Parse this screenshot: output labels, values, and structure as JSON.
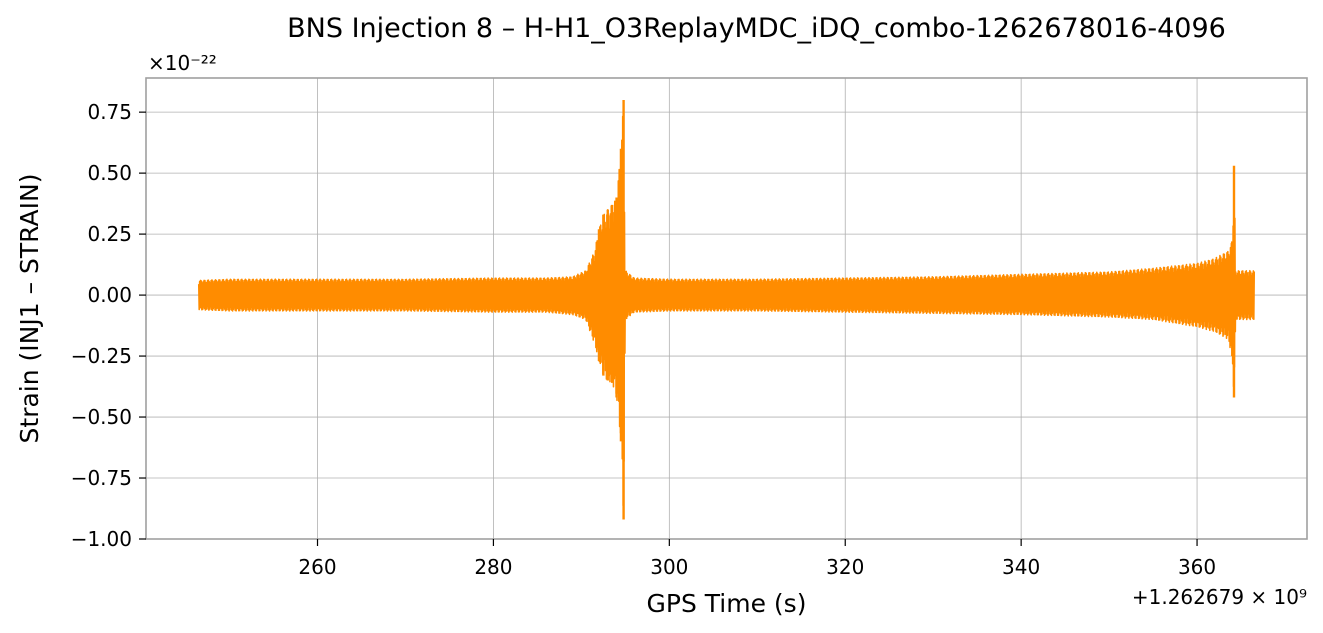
{
  "chart_data": {
    "type": "line",
    "title": "BNS Injection 8 – H-H1_O3ReplayMDC_iDQ_combo-1262678016-4096",
    "xlabel": "GPS Time (s)",
    "ylabel": "Strain (INJ1 – STRAIN)",
    "y_scale_label": "×10⁻²²",
    "x_offset_label": "+1.262679 × 10⁹",
    "xlim": [
      240.5,
      372.5
    ],
    "ylim": [
      -1.0,
      0.89
    ],
    "x_ticks": [
      260,
      280,
      300,
      320,
      340,
      360
    ],
    "x_tick_labels": [
      "260",
      "280",
      "300",
      "320",
      "340",
      "360"
    ],
    "y_ticks": [
      0.75,
      0.5,
      0.25,
      0.0,
      -0.25,
      -0.5,
      -0.75,
      -1.0
    ],
    "y_tick_labels": [
      "0.75",
      "0.50",
      "0.25",
      "0.00",
      "−0.25",
      "−0.50",
      "−0.75",
      "−1.00"
    ],
    "grid": true,
    "series_color": "#ff8c00",
    "series": [
      {
        "x_start": 246.5,
        "x_end": 366.5,
        "envelope_upper": [
          [
            246.5,
            0.06
          ],
          [
            250,
            0.065
          ],
          [
            260,
            0.065
          ],
          [
            270,
            0.065
          ],
          [
            280,
            0.07
          ],
          [
            286,
            0.07
          ],
          [
            289,
            0.075
          ],
          [
            290.5,
            0.1
          ],
          [
            291.5,
            0.18
          ],
          [
            292,
            0.27
          ],
          [
            292.5,
            0.33
          ],
          [
            293,
            0.35
          ],
          [
            293.5,
            0.37
          ],
          [
            294,
            0.4
          ],
          [
            294.5,
            0.6
          ],
          [
            294.8,
            0.8
          ],
          [
            295,
            0.1
          ],
          [
            296,
            0.07
          ],
          [
            300,
            0.065
          ],
          [
            310,
            0.065
          ],
          [
            320,
            0.07
          ],
          [
            330,
            0.075
          ],
          [
            340,
            0.085
          ],
          [
            345,
            0.09
          ],
          [
            350,
            0.095
          ],
          [
            355,
            0.11
          ],
          [
            360,
            0.13
          ],
          [
            362,
            0.15
          ],
          [
            363.5,
            0.18
          ],
          [
            364,
            0.22
          ],
          [
            364.2,
            0.53
          ],
          [
            364.4,
            0.1
          ],
          [
            366.5,
            0.1
          ]
        ],
        "envelope_lower": [
          [
            246.5,
            -0.06
          ],
          [
            250,
            -0.065
          ],
          [
            260,
            -0.065
          ],
          [
            270,
            -0.065
          ],
          [
            280,
            -0.07
          ],
          [
            286,
            -0.07
          ],
          [
            289,
            -0.08
          ],
          [
            290.5,
            -0.1
          ],
          [
            291.5,
            -0.2
          ],
          [
            292,
            -0.27
          ],
          [
            292.5,
            -0.33
          ],
          [
            293,
            -0.35
          ],
          [
            293.5,
            -0.36
          ],
          [
            294,
            -0.42
          ],
          [
            294.5,
            -0.6
          ],
          [
            294.8,
            -0.92
          ],
          [
            295,
            -0.1
          ],
          [
            296,
            -0.07
          ],
          [
            300,
            -0.065
          ],
          [
            310,
            -0.065
          ],
          [
            320,
            -0.07
          ],
          [
            330,
            -0.075
          ],
          [
            340,
            -0.08
          ],
          [
            345,
            -0.085
          ],
          [
            350,
            -0.09
          ],
          [
            355,
            -0.1
          ],
          [
            360,
            -0.13
          ],
          [
            362,
            -0.15
          ],
          [
            363.5,
            -0.18
          ],
          [
            364,
            -0.25
          ],
          [
            364.2,
            -0.42
          ],
          [
            364.4,
            -0.1
          ],
          [
            366.5,
            -0.1
          ]
        ]
      }
    ]
  }
}
